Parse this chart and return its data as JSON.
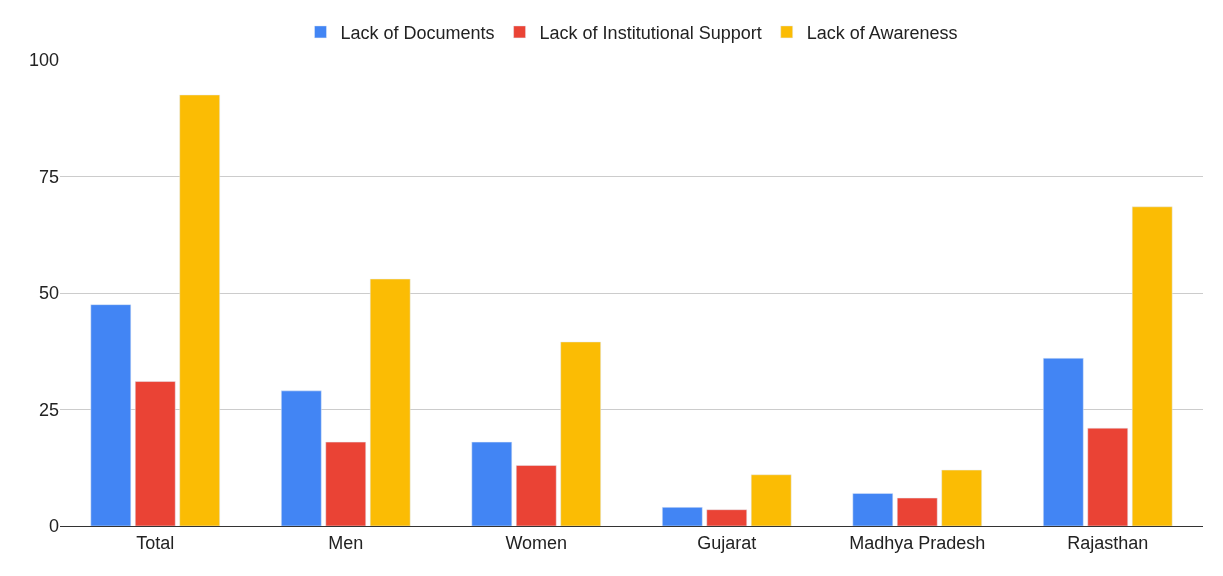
{
  "chart_data": {
    "type": "bar",
    "categories": [
      "Total",
      "Men",
      "Women",
      "Gujarat",
      "Madhya Pradesh",
      "Rajasthan"
    ],
    "series": [
      {
        "name": "Lack of Documents",
        "color": "#4285f4",
        "values": [
          47.5,
          29,
          18,
          4,
          7,
          36
        ]
      },
      {
        "name": "Lack of Institutional Support",
        "color": "#ea4335",
        "values": [
          31,
          18,
          13,
          3.5,
          6,
          21
        ]
      },
      {
        "name": "Lack of Awareness",
        "color": "#fbbc04",
        "values": [
          92.5,
          53,
          39.5,
          11,
          12,
          68.5
        ]
      }
    ],
    "ylim": [
      0,
      100
    ],
    "yticks": [
      0,
      25,
      50,
      75,
      100
    ],
    "grid": "y",
    "legend": "top"
  }
}
